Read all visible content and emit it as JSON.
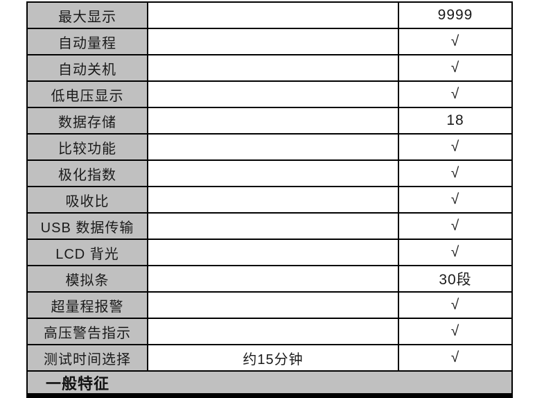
{
  "table": {
    "colors": {
      "label_background": "#c0c0c0",
      "border": "#000000",
      "cell_background": "#ffffff",
      "text": "#1a1a1a",
      "divider_bar": "#000000"
    },
    "rows": [
      {
        "label": "最大显示",
        "middle": "",
        "value": "9999"
      },
      {
        "label": "自动量程",
        "middle": "",
        "value": "√"
      },
      {
        "label": "自动关机",
        "middle": "",
        "value": "√"
      },
      {
        "label": "低电压显示",
        "middle": "",
        "value": "√"
      },
      {
        "label": "数据存储",
        "middle": "",
        "value": "18"
      },
      {
        "label": "比较功能",
        "middle": "",
        "value": "√"
      },
      {
        "label": "极化指数",
        "middle": "",
        "value": "√"
      },
      {
        "label": "吸收比",
        "middle": "",
        "value": "√"
      },
      {
        "label": "USB 数据传输",
        "middle": "",
        "value": "√"
      },
      {
        "label": "LCD 背光",
        "middle": "",
        "value": "√"
      },
      {
        "label": "模拟条",
        "middle": "",
        "value": "30段"
      },
      {
        "label": "超量程报警",
        "middle": "",
        "value": "√"
      },
      {
        "label": "高压警告指示",
        "middle": "",
        "value": "√"
      },
      {
        "label": "测试时间选择",
        "middle": "约15分钟",
        "value": "√"
      }
    ],
    "section_header": "一般特征"
  }
}
